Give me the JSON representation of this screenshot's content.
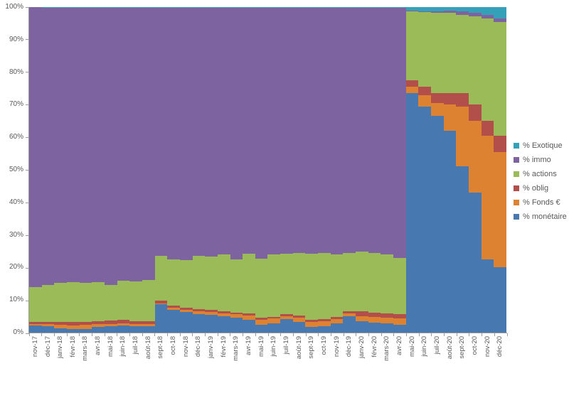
{
  "chart_data": {
    "type": "area",
    "subtype": "100%-stacked-columns",
    "title": "",
    "xlabel": "",
    "ylabel": "",
    "ylim": [
      0,
      100
    ],
    "grid": false,
    "legend_position": "right",
    "y_ticks": [
      "0%",
      "10%",
      "20%",
      "30%",
      "40%",
      "50%",
      "60%",
      "70%",
      "80%",
      "90%",
      "100%"
    ],
    "categories": [
      "nov-17",
      "déc-17",
      "janv-18",
      "févr-18",
      "mars-18",
      "avr-18",
      "mai-18",
      "juin-18",
      "juil-18",
      "août-18",
      "sept-18",
      "oct-18",
      "nov-18",
      "déc-18",
      "janv-19",
      "févr-19",
      "mars-19",
      "avr-19",
      "mai-19",
      "juin-19",
      "juil-19",
      "août-19",
      "sept-19",
      "oct-19",
      "nov-19",
      "déc-19",
      "janv-20",
      "févr-20",
      "mars-20",
      "avr-20",
      "mai-20",
      "juin-20",
      "juil-20",
      "août-20",
      "sept-20",
      "oct-20",
      "nov-20",
      "déc-20"
    ],
    "series": [
      {
        "name": "% monétaire",
        "color": "#4878B0",
        "values": [
          2.2,
          1.9,
          1.4,
          1.0,
          1.2,
          1.8,
          2.0,
          2.2,
          1.9,
          2.0,
          8.7,
          7.0,
          6.3,
          5.7,
          5.4,
          5.0,
          4.6,
          3.9,
          2.5,
          2.8,
          4.1,
          3.3,
          1.7,
          1.9,
          2.8,
          5.0,
          3.6,
          3.0,
          2.8,
          2.5,
          73.5,
          69.5,
          66.5,
          62.0,
          51.0,
          43.0,
          22.5,
          20.0
        ]
      },
      {
        "name": "% Fonds €",
        "color": "#DD8231",
        "values": [
          0.5,
          0.8,
          1.0,
          1.2,
          1.1,
          0.8,
          0.6,
          0.6,
          0.8,
          0.7,
          0.3,
          0.7,
          0.7,
          0.8,
          0.9,
          1.0,
          1.0,
          1.3,
          1.4,
          1.5,
          1.0,
          1.2,
          1.6,
          1.6,
          1.4,
          0.8,
          1.4,
          1.8,
          1.8,
          1.9,
          2.0,
          3.5,
          4.0,
          8.0,
          18.5,
          22.0,
          38.0,
          35.5
        ]
      },
      {
        "name": "% oblig",
        "color": "#B24F4A",
        "values": [
          0.6,
          0.5,
          0.9,
          1.0,
          1.0,
          0.9,
          1.1,
          1.2,
          0.9,
          0.8,
          0.9,
          0.7,
          0.7,
          0.7,
          0.6,
          0.6,
          0.6,
          0.6,
          0.6,
          0.6,
          0.6,
          0.7,
          0.7,
          0.7,
          0.6,
          0.7,
          1.6,
          1.3,
          1.3,
          1.3,
          2.0,
          2.5,
          3.0,
          3.5,
          4.0,
          5.0,
          4.5,
          5.0
        ]
      },
      {
        "name": "% actions",
        "color": "#9BBB59",
        "values": [
          10.7,
          11.4,
          12.1,
          12.4,
          11.9,
          12.0,
          10.9,
          11.9,
          12.2,
          12.6,
          13.6,
          14.1,
          14.6,
          16.3,
          16.4,
          17.4,
          16.3,
          18.5,
          18.3,
          19.1,
          18.6,
          19.3,
          20.3,
          20.3,
          19.2,
          18.0,
          18.4,
          18.4,
          18.1,
          17.3,
          21.3,
          23.0,
          24.7,
          24.7,
          24.2,
          27.1,
          31.6,
          34.9
        ]
      },
      {
        "name": "% immo",
        "color": "#7D64A0",
        "values": [
          86.0,
          85.2,
          84.4,
          84.2,
          84.6,
          84.3,
          85.2,
          83.9,
          84.0,
          83.7,
          76.3,
          77.3,
          77.5,
          76.3,
          76.5,
          75.8,
          77.3,
          75.5,
          77.0,
          75.8,
          75.5,
          75.3,
          75.5,
          75.3,
          75.8,
          75.3,
          74.8,
          75.3,
          75.8,
          76.8,
          0.2,
          0.3,
          0.4,
          0.7,
          1.0,
          1.1,
          1.1,
          1.2
        ]
      },
      {
        "name": "% Exotique",
        "color": "#35A1B8",
        "values": [
          0.0,
          0.2,
          0.2,
          0.2,
          0.2,
          0.2,
          0.2,
          0.2,
          0.2,
          0.2,
          0.2,
          0.2,
          0.2,
          0.2,
          0.2,
          0.2,
          0.2,
          0.2,
          0.2,
          0.2,
          0.2,
          0.2,
          0.2,
          0.2,
          0.2,
          0.2,
          0.2,
          0.2,
          0.2,
          0.2,
          1.0,
          1.2,
          1.4,
          1.1,
          1.3,
          1.8,
          2.3,
          3.4
        ]
      }
    ],
    "legend_order": [
      "% Exotique",
      "% immo",
      "% actions",
      "% oblig",
      "% Fonds €",
      "% monétaire"
    ]
  },
  "colors": {
    "axis": "#9C9C9C",
    "tick_text": "#595959",
    "background": "#FFFFFF"
  }
}
